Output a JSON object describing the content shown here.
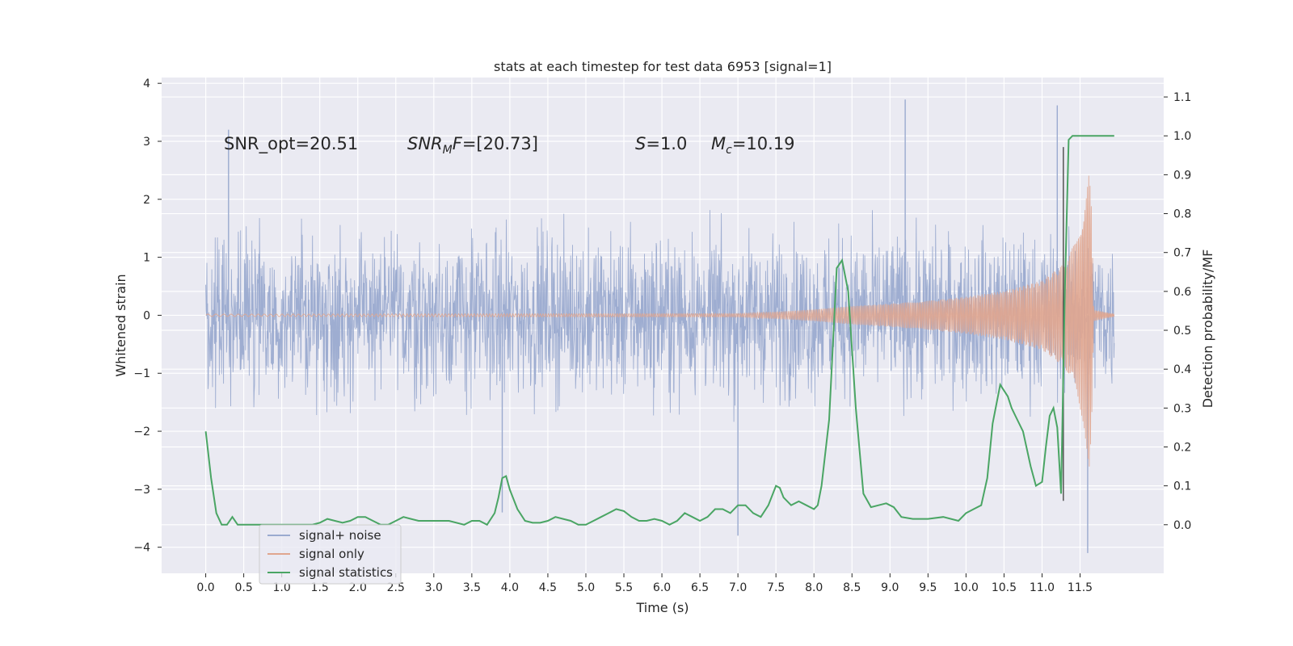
{
  "chart_data": {
    "type": "line",
    "title": "stats at each timestep for test data 6953 [signal=1]",
    "xlabel": "Time (s)",
    "ylabel_left": "Whitened strain",
    "ylabel_right": "Detection probability/MF",
    "xlim": [
      -0.58,
      12.6
    ],
    "ylim_left": [
      -4.45,
      4.1
    ],
    "ylim_right": [
      -0.125,
      1.15
    ],
    "x_ticks": [
      "0.0",
      "0.5",
      "1.0",
      "1.5",
      "2.0",
      "2.5",
      "3.0",
      "3.5",
      "4.0",
      "4.5",
      "5.0",
      "5.5",
      "6.0",
      "6.5",
      "7.0",
      "7.5",
      "8.0",
      "8.5",
      "9.0",
      "9.5",
      "10.0",
      "10.5",
      "11.0",
      "11.5"
    ],
    "y_ticks_left": [
      "−4",
      "−3",
      "−2",
      "−1",
      "0",
      "1",
      "2",
      "3",
      "4"
    ],
    "y_ticks_right": [
      "0.0",
      "0.1",
      "0.2",
      "0.3",
      "0.4",
      "0.5",
      "0.6",
      "0.7",
      "0.8",
      "0.9",
      "1.0",
      "1.1"
    ],
    "grid": true,
    "legend_position": "lower-left",
    "colors": {
      "background": "#eaeaf2",
      "grid": "#ffffff",
      "signal_noise": "#9aaacf",
      "signal_only": "#e0a58e",
      "signal_statistics": "#4aa564",
      "marker_line": "#555555"
    },
    "annotations": [
      {
        "id": "snr_opt",
        "text": "SNR_opt=20.51"
      },
      {
        "id": "snr_mf",
        "text": "SNR_MF=[20.73]"
      },
      {
        "id": "s",
        "text": "S=1.0"
      },
      {
        "id": "mc",
        "text": "M_c=10.19"
      }
    ],
    "vertical_marker_x": 11.28,
    "series": [
      {
        "name": "signal+ noise",
        "axis": "left",
        "description_values": {
          "x_start": 0.0,
          "x_end": 11.95,
          "typical_range": [
            -1.7,
            1.7
          ],
          "extreme_range": [
            -4.1,
            3.72
          ]
        },
        "peaks": [
          [
            0.3,
            3.2
          ],
          [
            3.9,
            -3.4
          ],
          [
            7.0,
            -3.8
          ],
          [
            9.2,
            3.72
          ],
          [
            11.2,
            3.62
          ],
          [
            11.6,
            -4.1
          ]
        ]
      },
      {
        "name": "signal only",
        "axis": "left",
        "envelope": [
          [
            0.0,
            0.02
          ],
          [
            7.0,
            0.03
          ],
          [
            7.5,
            0.06
          ],
          [
            8.0,
            0.1
          ],
          [
            8.5,
            0.16
          ],
          [
            9.0,
            0.2
          ],
          [
            9.5,
            0.25
          ],
          [
            10.0,
            0.32
          ],
          [
            10.5,
            0.42
          ],
          [
            11.0,
            0.6
          ],
          [
            11.3,
            0.9
          ],
          [
            11.45,
            1.3
          ],
          [
            11.55,
            1.9
          ],
          [
            11.62,
            2.7
          ],
          [
            11.65,
            2.0
          ],
          [
            11.68,
            0.1
          ],
          [
            11.95,
            0.02
          ]
        ]
      },
      {
        "name": "signal statistics",
        "axis": "right",
        "x": [
          0.0,
          0.07,
          0.14,
          0.21,
          0.28,
          0.35,
          0.42,
          0.5,
          0.6,
          0.7,
          0.8,
          0.9,
          1.0,
          1.2,
          1.4,
          1.5,
          1.6,
          1.7,
          1.8,
          1.9,
          2.0,
          2.1,
          2.2,
          2.3,
          2.4,
          2.5,
          2.6,
          2.7,
          2.8,
          2.9,
          3.0,
          3.2,
          3.4,
          3.5,
          3.6,
          3.7,
          3.8,
          3.85,
          3.9,
          3.95,
          4.0,
          4.1,
          4.2,
          4.3,
          4.4,
          4.5,
          4.6,
          4.7,
          4.8,
          4.9,
          5.0,
          5.1,
          5.2,
          5.3,
          5.4,
          5.5,
          5.6,
          5.7,
          5.8,
          5.9,
          6.0,
          6.1,
          6.2,
          6.3,
          6.4,
          6.5,
          6.6,
          6.7,
          6.8,
          6.9,
          7.0,
          7.1,
          7.2,
          7.3,
          7.4,
          7.5,
          7.55,
          7.6,
          7.7,
          7.8,
          7.9,
          8.0,
          8.05,
          8.1,
          8.2,
          8.3,
          8.37,
          8.45,
          8.55,
          8.65,
          8.75,
          8.85,
          8.95,
          9.05,
          9.15,
          9.3,
          9.5,
          9.7,
          9.9,
          10.0,
          10.1,
          10.2,
          10.28,
          10.35,
          10.45,
          10.55,
          10.6,
          10.65,
          10.75,
          10.85,
          10.92,
          11.0,
          11.05,
          11.1,
          11.15,
          11.2,
          11.25,
          11.3,
          11.35,
          11.4,
          11.5,
          11.6,
          11.7,
          11.8,
          11.9,
          11.95
        ],
        "values": [
          0.24,
          0.12,
          0.03,
          0.0,
          0.0,
          0.02,
          0.0,
          0.0,
          0.0,
          0.0,
          0.0,
          0.0,
          0.0,
          0.0,
          0.0,
          0.005,
          0.015,
          0.01,
          0.005,
          0.01,
          0.02,
          0.02,
          0.01,
          0.0,
          0.0,
          0.01,
          0.02,
          0.015,
          0.01,
          0.01,
          0.01,
          0.01,
          0.0,
          0.01,
          0.01,
          0.0,
          0.03,
          0.07,
          0.12,
          0.125,
          0.09,
          0.04,
          0.01,
          0.005,
          0.005,
          0.01,
          0.02,
          0.015,
          0.01,
          0.0,
          0.0,
          0.01,
          0.02,
          0.03,
          0.04,
          0.035,
          0.02,
          0.01,
          0.01,
          0.015,
          0.01,
          0.0,
          0.01,
          0.03,
          0.02,
          0.01,
          0.02,
          0.04,
          0.04,
          0.03,
          0.05,
          0.05,
          0.03,
          0.02,
          0.05,
          0.1,
          0.095,
          0.07,
          0.05,
          0.06,
          0.05,
          0.04,
          0.05,
          0.1,
          0.27,
          0.66,
          0.68,
          0.6,
          0.3,
          0.08,
          0.045,
          0.05,
          0.055,
          0.045,
          0.02,
          0.015,
          0.015,
          0.02,
          0.01,
          0.03,
          0.04,
          0.05,
          0.12,
          0.26,
          0.36,
          0.33,
          0.3,
          0.28,
          0.24,
          0.15,
          0.1,
          0.11,
          0.2,
          0.28,
          0.3,
          0.25,
          0.08,
          0.6,
          0.99,
          1.0,
          1.0,
          1.0,
          1.0,
          1.0,
          1.0,
          1.0
        ]
      }
    ],
    "legend": [
      {
        "label": "signal+ noise",
        "color": "#9aaacf"
      },
      {
        "label": "signal only",
        "color": "#e0a58e"
      },
      {
        "label": "signal statistics",
        "color": "#4aa564"
      }
    ]
  }
}
